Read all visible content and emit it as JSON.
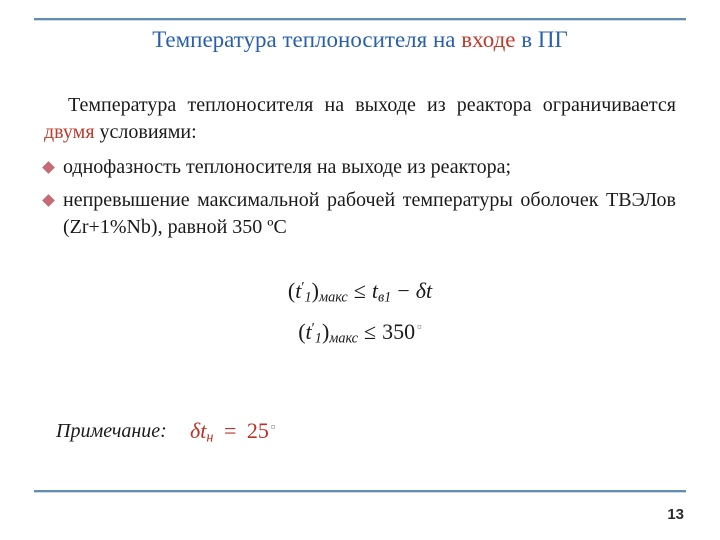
{
  "title": {
    "t1": "Температура теплоносителя на ",
    "t2": "входе",
    "t3": " в ПГ"
  },
  "intro": {
    "p1": "Температура теплоносителя на выходе из реактора ограничивается ",
    "p2": "двумя",
    "p3": " условиями:"
  },
  "bullets": {
    "b1": "однофазность теплоносителя на выходе из реактора;",
    "b2": "непревышение  максимальной рабочей температуры оболочек ТВЭЛов (Zr+1%Nb), равной 350 ºС"
  },
  "formula1": {
    "lp": "(",
    "t": "t",
    "one": "1",
    "prime": "′",
    "rp": ")",
    "sub": "макс",
    "le": "≤",
    "tv": "t",
    "vsub": "в1",
    "minus": "−",
    "delta": "δ",
    "dt": "t"
  },
  "formula2": {
    "lp": "(",
    "t": "t",
    "one": "1",
    "prime": "′",
    "rp": ")",
    "sub": "макс",
    "le": "≤",
    "rhs": "350",
    "sq": "▫"
  },
  "note": {
    "label": "Примечание:",
    "delta": "δ",
    "t": "t",
    "sub": "н",
    "eq": "=",
    "val": "25",
    "sq": "▫"
  },
  "pagenum": "13",
  "colors": {
    "rule": "#5f8db3",
    "title_blue": "#2a5fae",
    "accent_red": "#c0392b",
    "bullet": "#c66b74",
    "formula_red": "#b93226"
  }
}
